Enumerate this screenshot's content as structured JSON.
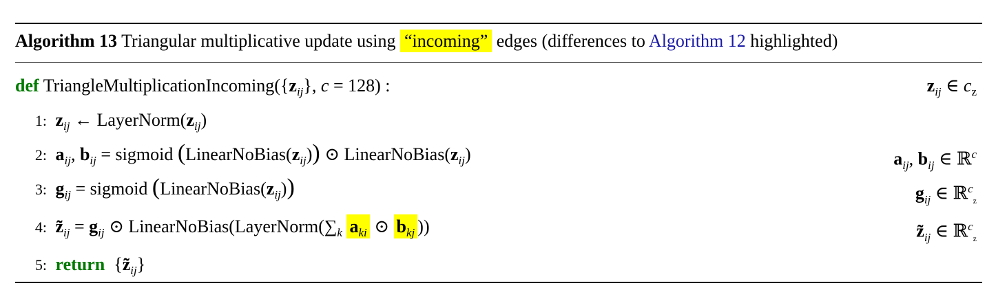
{
  "caption": {
    "label": "Algorithm 13",
    "text_before": "Triangular multiplicative update using",
    "highlight": "“incoming”",
    "text_after": "edges (differences to",
    "link": "Algorithm 12",
    "text_end": "highlighted)"
  },
  "def_line": {
    "keyword": "def",
    "name": "TriangleMultiplicationIncoming",
    "z": "z",
    "sub_ij": "ij",
    "c_param": "c",
    "c_value": "= 128) :",
    "annotation_var": "z",
    "annotation_sub": "ij",
    "annotation_set": "∈ c",
    "annotation_set_sub": "z"
  },
  "lines": [
    {
      "num": "1:",
      "text": "← LayerNorm("
    },
    {
      "num": "2:",
      "text_a": "sigmoid",
      "text_b": "LinearNoBias(",
      "text_c": "LinearNoBias(",
      "ann": "∈ ℝ",
      "ann_sup": "c"
    },
    {
      "num": "3:",
      "text_a": "sigmoid",
      "text_b": "LinearNoBias(",
      "ann": "∈ ℝ",
      "ann_sup": "c"
    },
    {
      "num": "4:",
      "text_a": "LinearNoBias(LayerNorm(",
      "sum": "∑",
      "sum_sub": "k",
      "ann": "∈ ℝ",
      "ann_sup": "c"
    },
    {
      "num": "5:",
      "keyword": "return"
    }
  ],
  "colors": {
    "highlight": "#ffff00",
    "keyword": "#007a00",
    "link": "#1a1aa6"
  }
}
